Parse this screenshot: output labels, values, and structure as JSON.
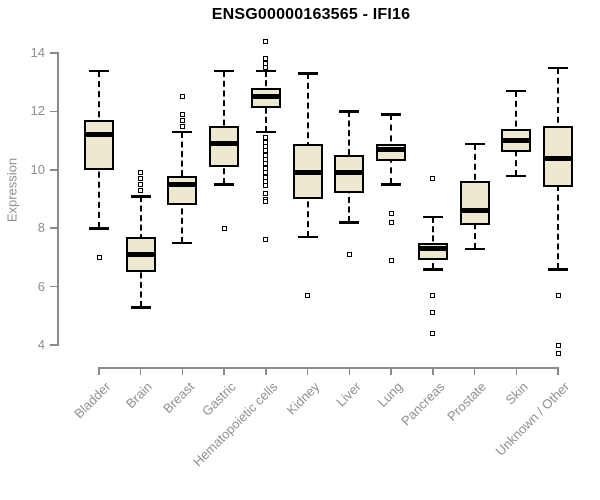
{
  "title": "ENSG00000163565 - IFI16",
  "background": "#ffffff",
  "colors": {
    "box_fill": "#EDE8D0",
    "box_border": "#000000",
    "median": "#000000",
    "whisker": "#000000",
    "axis_line": "#8a8a8a",
    "label_text": "#8f8f8f",
    "title_text": "#000000"
  },
  "chart_data": {
    "type": "boxplot",
    "title": "ENSG00000163565 - IFI16",
    "ylabel": "Expression",
    "xlabel": "",
    "ylim": [
      3.6,
      14.6
    ],
    "yticks": [
      4,
      6,
      8,
      10,
      12,
      14
    ],
    "grid": false,
    "legend": false,
    "categories": [
      "Bladder",
      "Brain",
      "Breast",
      "Gastric",
      "Hematopoietic cells",
      "Kidney",
      "Liver",
      "Lung",
      "Pancreas",
      "Prostate",
      "Skin",
      "Unknown / Other"
    ],
    "series": [
      {
        "name": "Bladder",
        "whisker_low": 8.0,
        "q1": 10.0,
        "median": 11.2,
        "q3": 11.7,
        "whisker_high": 13.4,
        "outliers": [
          7.0
        ]
      },
      {
        "name": "Brain",
        "whisker_low": 5.3,
        "q1": 6.5,
        "median": 7.1,
        "q3": 7.7,
        "whisker_high": 9.1,
        "outliers": [
          9.3,
          9.5,
          9.7,
          9.9
        ]
      },
      {
        "name": "Breast",
        "whisker_low": 7.5,
        "q1": 8.8,
        "median": 9.5,
        "q3": 9.8,
        "whisker_high": 11.3,
        "outliers": [
          11.5,
          11.7,
          11.9,
          12.5
        ]
      },
      {
        "name": "Gastric",
        "whisker_low": 9.5,
        "q1": 10.1,
        "median": 10.9,
        "q3": 11.5,
        "whisker_high": 13.4,
        "outliers": [
          8.0
        ]
      },
      {
        "name": "Hematopoietic cells",
        "whisker_low": 11.3,
        "q1": 12.1,
        "median": 12.5,
        "q3": 12.8,
        "whisker_high": 13.4,
        "outliers": [
          14.4,
          13.8,
          13.65,
          13.5,
          11.1,
          10.95,
          10.8,
          10.65,
          10.5,
          10.35,
          10.2,
          10.05,
          9.9,
          9.75,
          9.6,
          9.45,
          9.2,
          9.0,
          8.9,
          7.6
        ]
      },
      {
        "name": "Kidney",
        "whisker_low": 7.7,
        "q1": 9.0,
        "median": 9.9,
        "q3": 10.9,
        "whisker_high": 13.3,
        "outliers": [
          5.7
        ]
      },
      {
        "name": "Liver",
        "whisker_low": 8.2,
        "q1": 9.2,
        "median": 9.9,
        "q3": 10.5,
        "whisker_high": 12.0,
        "outliers": [
          7.1
        ]
      },
      {
        "name": "Lung",
        "whisker_low": 9.5,
        "q1": 10.3,
        "median": 10.7,
        "q3": 10.9,
        "whisker_high": 11.9,
        "outliers": [
          8.5,
          8.2,
          6.9
        ]
      },
      {
        "name": "Pancreas",
        "whisker_low": 6.6,
        "q1": 6.9,
        "median": 7.3,
        "q3": 7.5,
        "whisker_high": 8.4,
        "outliers": [
          9.7,
          5.7,
          5.1,
          4.4
        ]
      },
      {
        "name": "Prostate",
        "whisker_low": 7.3,
        "q1": 8.1,
        "median": 8.6,
        "q3": 9.6,
        "whisker_high": 10.9,
        "outliers": []
      },
      {
        "name": "Skin",
        "whisker_low": 9.8,
        "q1": 10.6,
        "median": 11.0,
        "q3": 11.4,
        "whisker_high": 12.7,
        "outliers": []
      },
      {
        "name": "Unknown / Other",
        "whisker_low": 6.6,
        "q1": 9.4,
        "median": 10.4,
        "q3": 11.5,
        "whisker_high": 13.5,
        "outliers": [
          5.7,
          4.0,
          3.7
        ]
      }
    ]
  }
}
